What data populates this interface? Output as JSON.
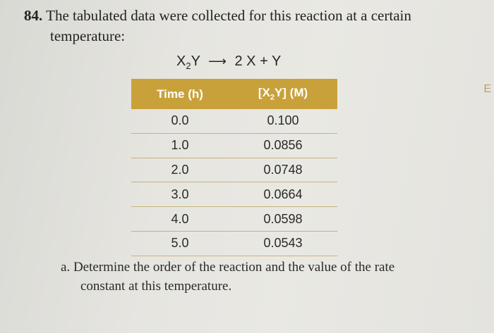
{
  "problem": {
    "number": "84.",
    "line1": "The tabulated data were collected for this reaction at a certain",
    "line2": "temperature:"
  },
  "equation": {
    "reactant": "X",
    "reactant_sub": "2",
    "reactant_tail": "Y",
    "arrow": "⟶",
    "products": "2 X + Y"
  },
  "table": {
    "headers": {
      "time": "Time (h)",
      "conc_pre": "[X",
      "conc_sub": "2",
      "conc_post": "Y] (M)"
    },
    "rows": [
      {
        "time": "0.0",
        "conc": "0.100"
      },
      {
        "time": "1.0",
        "conc": "0.0856"
      },
      {
        "time": "2.0",
        "conc": "0.0748"
      },
      {
        "time": "3.0",
        "conc": "0.0664"
      },
      {
        "time": "4.0",
        "conc": "0.0598"
      },
      {
        "time": "5.0",
        "conc": "0.0543"
      }
    ]
  },
  "part_a": {
    "label": "a.",
    "line1": "Determine the order of the reaction and the value of the rate",
    "line2": "constant at this temperature."
  },
  "edge_glyph": "E"
}
